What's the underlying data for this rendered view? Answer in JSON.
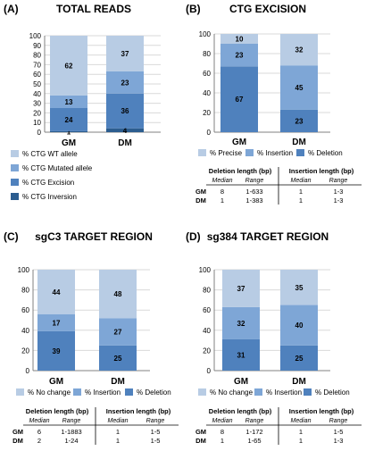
{
  "colors": {
    "wt_or_precise_or_nochange": "#b8cce4",
    "mutated_or_insertion": "#7ea6d6",
    "excision_or_deletion": "#4f81bd",
    "inversion": "#2c5d8f",
    "axis": "#808080",
    "grid": "#d9d9d9"
  },
  "chart_data": [
    {
      "panel_label": "(A)",
      "title": "TOTAL READS",
      "type": "bar",
      "stacked": true,
      "categories": [
        "GM",
        "DM"
      ],
      "ylim": [
        0,
        100
      ],
      "yticks": [
        "0",
        "10",
        "20",
        "30",
        "40",
        "50",
        "60",
        "70",
        "80",
        "90",
        "100"
      ],
      "series": [
        {
          "name": "% CTG Inversion",
          "values": [
            1,
            4
          ]
        },
        {
          "name": "% CTG Excision",
          "values": [
            24,
            36
          ]
        },
        {
          "name": "% CTG Mutated allele",
          "values": [
            13,
            23
          ]
        },
        {
          "name": "% CTG WT allele",
          "values": [
            62,
            37
          ]
        }
      ],
      "legend": [
        "% CTG WT allele",
        "% CTG Mutated allele",
        "% CTG Excision",
        "% CTG Inversion"
      ],
      "legend_placement": "bottom, vertical"
    },
    {
      "panel_label": "(B)",
      "title": "CTG EXCISION",
      "type": "bar",
      "stacked": true,
      "categories": [
        "GM",
        "DM"
      ],
      "ylim": [
        0,
        100
      ],
      "yticks": [
        "0",
        "20",
        "40",
        "60",
        "80",
        "100"
      ],
      "series": [
        {
          "name": "% Deletion",
          "values": [
            67,
            23
          ]
        },
        {
          "name": "% Insertion",
          "values": [
            23,
            45
          ]
        },
        {
          "name": "% Precise",
          "values": [
            10,
            32
          ]
        }
      ],
      "legend": [
        "% Precise",
        "% Insertion",
        "% Deletion"
      ],
      "legend_placement": "bottom, horizontal",
      "table": {
        "group_headers": [
          "Deletion length (bp)",
          "Insertion length (bp)"
        ],
        "sub_headers": [
          "Median",
          "Range",
          "Median",
          "Range"
        ],
        "rows": [
          {
            "label": "GM",
            "cells": [
              "8",
              "1-633",
              "1",
              "1-3"
            ]
          },
          {
            "label": "DM",
            "cells": [
              "1",
              "1-383",
              "1",
              "1-3"
            ]
          }
        ]
      }
    },
    {
      "panel_label": "(C)",
      "title": "sgC3 TARGET REGION",
      "type": "bar",
      "stacked": true,
      "categories": [
        "GM",
        "DM"
      ],
      "ylim": [
        0,
        100
      ],
      "yticks": [
        "0",
        "20",
        "40",
        "60",
        "80",
        "100"
      ],
      "series": [
        {
          "name": "% Deletion",
          "values": [
            39,
            25
          ]
        },
        {
          "name": "% Insertion",
          "values": [
            17,
            27
          ]
        },
        {
          "name": "% No change",
          "values": [
            44,
            48
          ]
        }
      ],
      "legend": [
        "% No change",
        "% Insertion",
        "% Deletion"
      ],
      "legend_placement": "bottom, horizontal",
      "table": {
        "group_headers": [
          "Deletion length (bp)",
          "Insertion length (bp)"
        ],
        "sub_headers": [
          "Median",
          "Range",
          "Median",
          "Range"
        ],
        "rows": [
          {
            "label": "GM",
            "cells": [
              "6",
              "1-1883",
              "1",
              "1-5"
            ]
          },
          {
            "label": "DM",
            "cells": [
              "2",
              "1-24",
              "1",
              "1-5"
            ]
          }
        ]
      }
    },
    {
      "panel_label": "(D)",
      "title": "sg384 TARGET REGION",
      "type": "bar",
      "stacked": true,
      "categories": [
        "GM",
        "DM"
      ],
      "ylim": [
        0,
        100
      ],
      "yticks": [
        "0",
        "20",
        "40",
        "60",
        "80",
        "100"
      ],
      "series": [
        {
          "name": "% Deletion",
          "values": [
            31,
            25
          ]
        },
        {
          "name": "% Insertion",
          "values": [
            32,
            40
          ]
        },
        {
          "name": "% No change",
          "values": [
            37,
            35
          ]
        }
      ],
      "legend": [
        "% No change",
        "% Insertion",
        "% Deletion"
      ],
      "legend_placement": "bottom, horizontal",
      "table": {
        "group_headers": [
          "Deletion length (bp)",
          "Insertion length (bp)"
        ],
        "sub_headers": [
          "Median",
          "Range",
          "Median",
          "Range"
        ],
        "rows": [
          {
            "label": "GM",
            "cells": [
              "8",
              "1-172",
              "1",
              "1-5"
            ]
          },
          {
            "label": "DM",
            "cells": [
              "1",
              "1-65",
              "1",
              "1-3"
            ]
          }
        ]
      }
    }
  ]
}
